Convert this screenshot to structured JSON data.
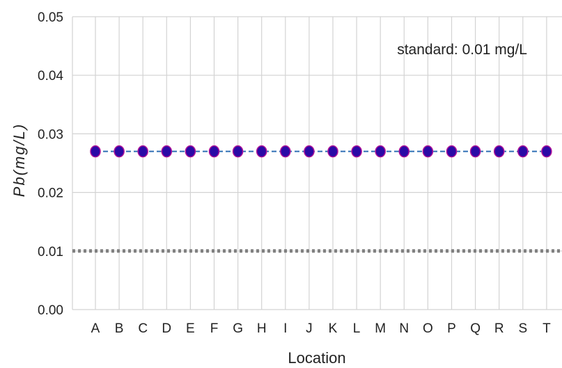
{
  "chart_data": {
    "type": "line",
    "title": "",
    "xlabel": "Location",
    "ylabel": "Pb(mg/L)",
    "categories": [
      "A",
      "B",
      "C",
      "D",
      "E",
      "F",
      "G",
      "H",
      "I",
      "J",
      "K",
      "L",
      "M",
      "N",
      "O",
      "P",
      "Q",
      "R",
      "S",
      "T"
    ],
    "series": [
      {
        "values": [
          0.027,
          0.027,
          0.027,
          0.027,
          0.027,
          0.027,
          0.027,
          0.027,
          0.027,
          0.027,
          0.027,
          0.027,
          0.027,
          0.027,
          0.027,
          0.027,
          0.027,
          0.027,
          0.027,
          0.027
        ],
        "line_style": "dashed",
        "line_color": "#2f6fb5",
        "marker": "circle",
        "marker_color": "#2a0aa6",
        "marker_edge_color": "#b0149a"
      }
    ],
    "reference_line": {
      "value": 0.01,
      "style": "dotted",
      "color": "#808080"
    },
    "annotation": "standard: 0.01 mg/L",
    "ylim": [
      0,
      0.05
    ],
    "yticks": [
      "0.00",
      "0.01",
      "0.02",
      "0.03",
      "0.04",
      "0.05"
    ],
    "grid": true,
    "grid_color": "#d3d3d3"
  }
}
